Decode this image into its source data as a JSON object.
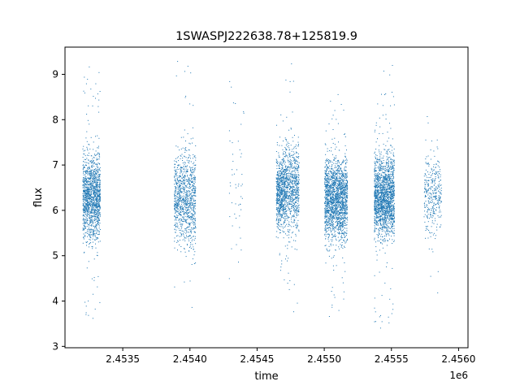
{
  "chart_data": {
    "type": "scatter",
    "title": "1SWASPJ222638.78+125819.9",
    "xlabel": "time",
    "ylabel": "flux",
    "x_offset_label": "1e6",
    "xlim": [
      2453070,
      2456070
    ],
    "ylim": [
      2.97,
      9.6
    ],
    "x_ticks": [
      2453500,
      2454000,
      2454500,
      2455000,
      2455500,
      2456000
    ],
    "x_tick_labels": [
      "2.4535",
      "2.4540",
      "2.4545",
      "2.4550",
      "2.4555",
      "2.4560"
    ],
    "y_ticks": [
      3,
      4,
      5,
      6,
      7,
      8,
      9
    ],
    "y_tick_labels": [
      "3",
      "4",
      "5",
      "6",
      "7",
      "8",
      "9"
    ],
    "grid": false,
    "point_color": "#1f77b4",
    "clusters": [
      {
        "x_range": [
          2453200,
          2453330
        ],
        "flux_mean": 6.3,
        "flux_spread": 0.45,
        "flux_min": 3.3,
        "flux_max": 9.35,
        "density": 1400
      },
      {
        "x_range": [
          2453880,
          2454040
        ],
        "flux_mean": 6.25,
        "flux_spread": 0.5,
        "flux_min": 3.7,
        "flux_max": 9.35,
        "density": 1000
      },
      {
        "x_range": [
          2454290,
          2454400
        ],
        "flux_mean": 6.6,
        "flux_spread": 0.9,
        "flux_min": 3.8,
        "flux_max": 8.85,
        "density": 50
      },
      {
        "x_range": [
          2454640,
          2454710
        ],
        "flux_mean": 6.4,
        "flux_spread": 0.4,
        "flux_min": 4.4,
        "flux_max": 8.2,
        "density": 700
      },
      {
        "x_range": [
          2454710,
          2454810
        ],
        "flux_mean": 6.5,
        "flux_spread": 0.5,
        "flux_min": 3.3,
        "flux_max": 9.3,
        "density": 700
      },
      {
        "x_range": [
          2455000,
          2455170
        ],
        "flux_mean": 6.25,
        "flux_spread": 0.45,
        "flux_min": 3.3,
        "flux_max": 8.6,
        "density": 1800
      },
      {
        "x_range": [
          2455370,
          2455520
        ],
        "flux_mean": 6.3,
        "flux_spread": 0.45,
        "flux_min": 3.3,
        "flux_max": 9.3,
        "density": 1800
      },
      {
        "x_range": [
          2455740,
          2455870
        ],
        "flux_mean": 6.4,
        "flux_spread": 0.45,
        "flux_min": 3.7,
        "flux_max": 8.45,
        "density": 350
      }
    ]
  }
}
